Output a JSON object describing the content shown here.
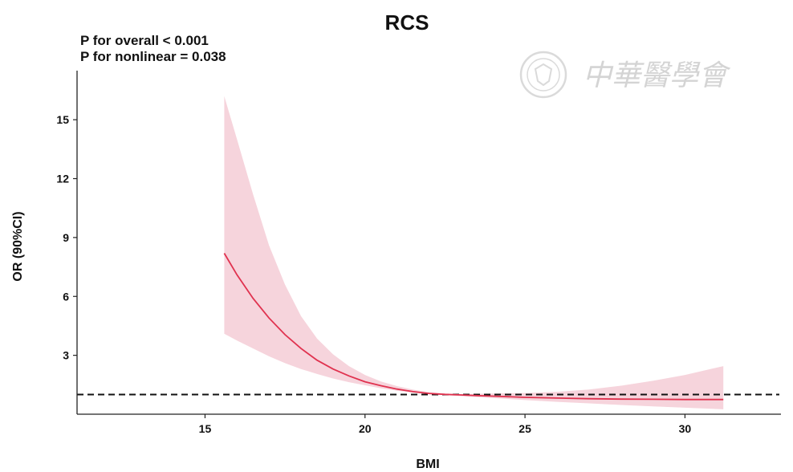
{
  "chart_data": {
    "type": "line",
    "title": "RCS",
    "annotations": [
      "P for overall < 0.001",
      "P for nonlinear = 0.038"
    ],
    "xlabel": "BMI",
    "ylabel": "OR (90%CI)",
    "xlim": [
      11,
      33
    ],
    "ylim": [
      0,
      17.5
    ],
    "x_ticks": [
      15,
      20,
      25,
      30
    ],
    "y_ticks": [
      3,
      6,
      9,
      12,
      15
    ],
    "reference_line": {
      "y": 1,
      "style": "dashed",
      "color": "#111111"
    },
    "series": [
      {
        "color": "#e0324f",
        "band_color": "#f6d4dc",
        "x": [
          15.6,
          16.0,
          16.5,
          17.0,
          17.5,
          18.0,
          18.5,
          19.0,
          19.5,
          20.0,
          20.5,
          21.0,
          21.5,
          22.0,
          22.5,
          23.0,
          23.5,
          24.0,
          25.0,
          26.0,
          27.0,
          28.0,
          29.0,
          30.0,
          31.2
        ],
        "y": [
          8.2,
          7.1,
          5.9,
          4.9,
          4.05,
          3.35,
          2.75,
          2.3,
          1.95,
          1.65,
          1.45,
          1.28,
          1.15,
          1.06,
          1.01,
          0.98,
          0.95,
          0.92,
          0.86,
          0.82,
          0.79,
          0.77,
          0.76,
          0.75,
          0.75
        ],
        "lower": [
          4.1,
          3.75,
          3.35,
          2.95,
          2.6,
          2.3,
          2.05,
          1.82,
          1.63,
          1.47,
          1.32,
          1.2,
          1.1,
          1.02,
          0.97,
          0.92,
          0.87,
          0.82,
          0.72,
          0.63,
          0.55,
          0.47,
          0.4,
          0.33,
          0.25
        ],
        "upper": [
          16.2,
          14.0,
          11.2,
          8.6,
          6.6,
          5.0,
          3.85,
          3.05,
          2.45,
          2.0,
          1.67,
          1.43,
          1.25,
          1.12,
          1.05,
          1.02,
          1.04,
          1.05,
          1.08,
          1.14,
          1.26,
          1.45,
          1.7,
          2.0,
          2.45
        ]
      }
    ]
  },
  "watermark": {
    "text": "中華醫學會",
    "seal_icon": "medical-association-seal-icon"
  }
}
